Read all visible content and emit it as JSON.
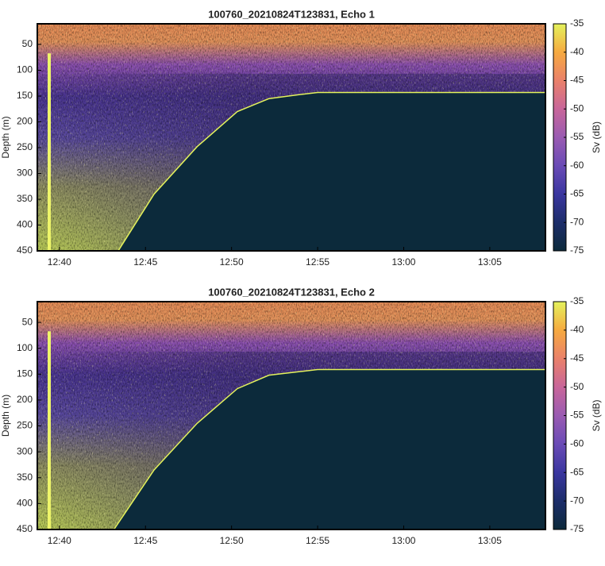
{
  "chart_data": [
    {
      "type": "echogram",
      "title": "100760_20210824T123831, Echo 1",
      "ylabel": "Depth (m)",
      "ylim": [
        10,
        450
      ],
      "y_reversed": true,
      "yticks": [
        50,
        100,
        150,
        200,
        250,
        300,
        350,
        400,
        450
      ],
      "xlim": [
        "12:38:43",
        "13:08:14"
      ],
      "xticks": [
        "12:40",
        "12:45",
        "12:50",
        "12:55",
        "13:00",
        "13:05"
      ],
      "colorbar": {
        "label": "Sv (dB)",
        "lim": [
          -75,
          -35
        ],
        "ticks": [
          -35,
          -40,
          -45,
          -50,
          -55,
          -60,
          -65,
          -70,
          -75
        ],
        "colors": [
          "#0c2a3b",
          "#1c2d6a",
          "#3a36a0",
          "#6a4bb6",
          "#9a5bb2",
          "#c8669a",
          "#ea816a",
          "#f6aa40",
          "#e4f25c"
        ]
      },
      "seafloor": {
        "x": [
          "12:43:25",
          "12:45:30",
          "12:48:00",
          "12:50:20",
          "12:52:10",
          "12:54:00",
          "12:55:00",
          "13:08:14"
        ],
        "depth": [
          450,
          340,
          248,
          180,
          155,
          147,
          143,
          143
        ]
      }
    },
    {
      "type": "echogram",
      "title": "100760_20210824T123831, Echo 2",
      "ylabel": "Depth (m)",
      "ylim": [
        10,
        450
      ],
      "y_reversed": true,
      "yticks": [
        50,
        100,
        150,
        200,
        250,
        300,
        350,
        400,
        450
      ],
      "xlim": [
        "12:38:43",
        "13:08:14"
      ],
      "xticks": [
        "12:40",
        "12:45",
        "12:50",
        "12:55",
        "13:00",
        "13:05"
      ],
      "colorbar": {
        "label": "Sv (dB)",
        "lim": [
          -75,
          -35
        ],
        "ticks": [
          -35,
          -40,
          -45,
          -50,
          -55,
          -60,
          -65,
          -70,
          -75
        ],
        "colors": [
          "#0c2a3b",
          "#1c2d6a",
          "#3a36a0",
          "#6a4bb6",
          "#9a5bb2",
          "#c8669a",
          "#ea816a",
          "#f6aa40",
          "#e4f25c"
        ]
      },
      "seafloor": {
        "x": [
          "12:43:10",
          "12:45:30",
          "12:48:00",
          "12:50:20",
          "12:52:10",
          "12:54:00",
          "12:55:00",
          "13:08:14"
        ],
        "depth": [
          450,
          335,
          245,
          178,
          152,
          145,
          141,
          141
        ]
      }
    }
  ]
}
